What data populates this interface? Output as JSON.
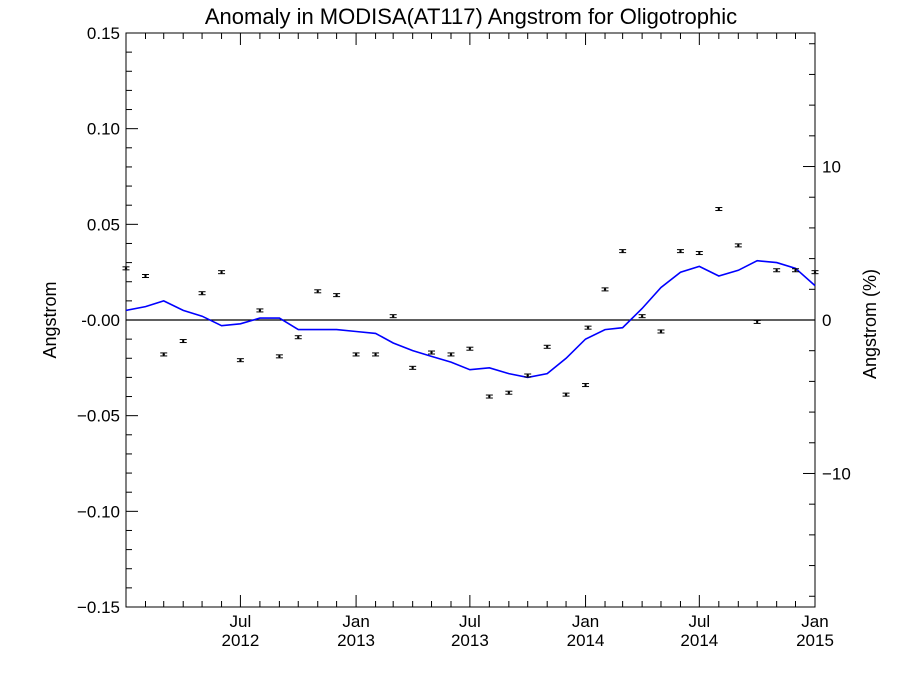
{
  "chart_data": {
    "type": "scatter",
    "title": "Anomaly in MODISA(AT117) Angstrom for Oligotrophic",
    "ylabel": "Angstrom",
    "y2label": "Angstrom (%)",
    "xlim": [
      "2012-01-01",
      "2015-01-01"
    ],
    "ylim": [
      -0.15,
      0.15
    ],
    "y2lim": [
      -18.7,
      18.7
    ],
    "grid": false,
    "x_ticks": [
      {
        "month": "Jul",
        "year": "2012"
      },
      {
        "month": "Jan",
        "year": "2013"
      },
      {
        "month": "Jul",
        "year": "2013"
      },
      {
        "month": "Jan",
        "year": "2014"
      },
      {
        "month": "Jul",
        "year": "2014"
      },
      {
        "month": "Jan",
        "year": "2015"
      }
    ],
    "y_ticks": [
      "0.15",
      "0.10",
      "0.05",
      "-0.00",
      "−0.05",
      "−0.10",
      "−0.15"
    ],
    "y2_ticks": [
      "10",
      "0",
      "−10"
    ],
    "series": [
      {
        "style": "points-with-error-bars",
        "color": "#000000",
        "x": [
          "2012-01-01",
          "2012-02-01",
          "2012-03-01",
          "2012-04-01",
          "2012-05-01",
          "2012-06-01",
          "2012-07-01",
          "2012-08-01",
          "2012-09-01",
          "2012-10-01",
          "2012-11-01",
          "2012-12-01",
          "2013-01-01",
          "2013-02-01",
          "2013-03-01",
          "2013-04-01",
          "2013-05-01",
          "2013-06-01",
          "2013-07-01",
          "2013-08-01",
          "2013-09-01",
          "2013-10-01",
          "2013-11-01",
          "2013-12-01",
          "2014-01-01",
          "2014-01-05",
          "2014-02-01",
          "2014-03-01",
          "2014-04-01",
          "2014-05-01",
          "2014-06-01",
          "2014-07-01",
          "2014-08-01",
          "2014-09-01",
          "2014-10-01",
          "2014-11-01",
          "2014-12-01",
          "2015-01-01"
        ],
        "y": [
          0.027,
          0.023,
          -0.018,
          -0.011,
          0.014,
          0.025,
          -0.021,
          0.005,
          -0.019,
          -0.009,
          0.015,
          0.013,
          -0.018,
          -0.018,
          0.002,
          -0.025,
          -0.017,
          -0.018,
          -0.015,
          -0.04,
          -0.038,
          -0.029,
          -0.014,
          -0.039,
          -0.034,
          -0.004,
          0.016,
          0.036,
          0.002,
          -0.006,
          0.036,
          0.035,
          0.058,
          0.039,
          -0.001,
          0.026,
          0.026,
          0.025
        ]
      },
      {
        "style": "line",
        "color": "#0000ff",
        "x": [
          "2012-01-01",
          "2012-02-01",
          "2012-03-01",
          "2012-04-01",
          "2012-05-01",
          "2012-06-01",
          "2012-07-01",
          "2012-08-01",
          "2012-09-01",
          "2012-10-01",
          "2012-11-01",
          "2012-12-01",
          "2013-01-01",
          "2013-02-01",
          "2013-03-01",
          "2013-04-01",
          "2013-05-01",
          "2013-06-01",
          "2013-07-01",
          "2013-08-01",
          "2013-09-01",
          "2013-10-01",
          "2013-11-01",
          "2013-12-01",
          "2014-01-01",
          "2014-02-01",
          "2014-03-01",
          "2014-04-01",
          "2014-05-01",
          "2014-06-01",
          "2014-07-01",
          "2014-08-01",
          "2014-09-01",
          "2014-10-01",
          "2014-11-01",
          "2014-12-01",
          "2015-01-01"
        ],
        "y": [
          0.005,
          0.007,
          0.01,
          0.005,
          0.002,
          -0.003,
          -0.002,
          0.001,
          0.001,
          -0.005,
          -0.005,
          -0.005,
          -0.006,
          -0.007,
          -0.012,
          -0.016,
          -0.019,
          -0.022,
          -0.026,
          -0.025,
          -0.028,
          -0.03,
          -0.028,
          -0.02,
          -0.01,
          -0.005,
          -0.004,
          0.006,
          0.017,
          0.025,
          0.028,
          0.023,
          0.026,
          0.031,
          0.03,
          0.027,
          0.018
        ]
      }
    ]
  }
}
